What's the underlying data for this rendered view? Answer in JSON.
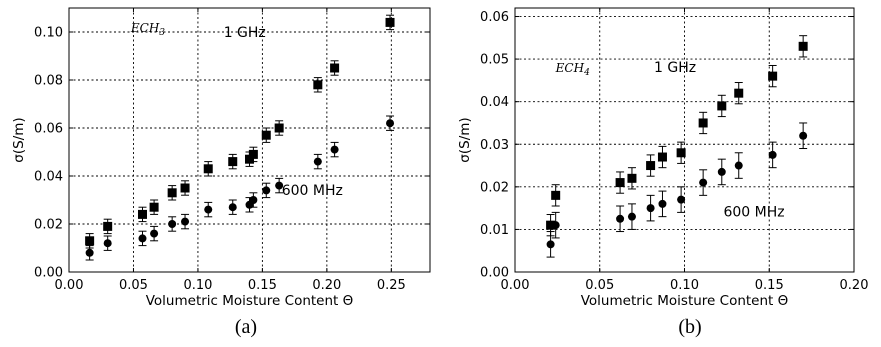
{
  "chart_data": [
    {
      "panel_label": "(a)",
      "type": "scatter",
      "xlabel": "Volumetric Moisture Content Θ",
      "ylabel": "σ(S/m)",
      "xlim": [
        0.0,
        0.28
      ],
      "ylim": [
        0.0,
        0.11
      ],
      "xticks": [
        0.0,
        0.05,
        0.1,
        0.15,
        0.2,
        0.25
      ],
      "xtick_labels": [
        "0.00",
        "0.05",
        "0.10",
        "0.15",
        "0.20",
        "0.25"
      ],
      "yticks": [
        0.0,
        0.02,
        0.04,
        0.06,
        0.08,
        0.1
      ],
      "ytick_labels": [
        "0.00",
        "0.02",
        "0.04",
        "0.06",
        "0.08",
        "0.10"
      ],
      "grid": true,
      "annotations": [
        {
          "text": "ECH",
          "sub": "3",
          "style": "italic",
          "x": 0.048,
          "y": 0.1
        },
        {
          "text": "1 GHz",
          "x": 0.12,
          "y": 0.098
        },
        {
          "text": "600 MHz",
          "x": 0.165,
          "y": 0.032
        }
      ],
      "series": [
        {
          "marker": "square",
          "points": [
            {
              "x": 0.016,
              "y": 0.013,
              "err": 0.003
            },
            {
              "x": 0.03,
              "y": 0.019,
              "err": 0.003
            },
            {
              "x": 0.057,
              "y": 0.024,
              "err": 0.003
            },
            {
              "x": 0.066,
              "y": 0.027,
              "err": 0.003
            },
            {
              "x": 0.08,
              "y": 0.033,
              "err": 0.003
            },
            {
              "x": 0.09,
              "y": 0.035,
              "err": 0.003
            },
            {
              "x": 0.108,
              "y": 0.043,
              "err": 0.003
            },
            {
              "x": 0.127,
              "y": 0.046,
              "err": 0.003
            },
            {
              "x": 0.14,
              "y": 0.047,
              "err": 0.003
            },
            {
              "x": 0.143,
              "y": 0.049,
              "err": 0.003
            },
            {
              "x": 0.153,
              "y": 0.057,
              "err": 0.003
            },
            {
              "x": 0.163,
              "y": 0.06,
              "err": 0.003
            },
            {
              "x": 0.193,
              "y": 0.078,
              "err": 0.003
            },
            {
              "x": 0.206,
              "y": 0.085,
              "err": 0.003
            },
            {
              "x": 0.249,
              "y": 0.104,
              "err": 0.003
            }
          ]
        },
        {
          "marker": "circle",
          "points": [
            {
              "x": 0.016,
              "y": 0.008,
              "err": 0.003
            },
            {
              "x": 0.03,
              "y": 0.012,
              "err": 0.003
            },
            {
              "x": 0.057,
              "y": 0.014,
              "err": 0.003
            },
            {
              "x": 0.066,
              "y": 0.016,
              "err": 0.003
            },
            {
              "x": 0.08,
              "y": 0.02,
              "err": 0.003
            },
            {
              "x": 0.09,
              "y": 0.021,
              "err": 0.003
            },
            {
              "x": 0.108,
              "y": 0.026,
              "err": 0.003
            },
            {
              "x": 0.127,
              "y": 0.027,
              "err": 0.003
            },
            {
              "x": 0.14,
              "y": 0.028,
              "err": 0.003
            },
            {
              "x": 0.143,
              "y": 0.03,
              "err": 0.003
            },
            {
              "x": 0.153,
              "y": 0.034,
              "err": 0.003
            },
            {
              "x": 0.163,
              "y": 0.036,
              "err": 0.003
            },
            {
              "x": 0.193,
              "y": 0.046,
              "err": 0.003
            },
            {
              "x": 0.206,
              "y": 0.051,
              "err": 0.003
            },
            {
              "x": 0.249,
              "y": 0.062,
              "err": 0.003
            }
          ]
        }
      ]
    },
    {
      "panel_label": "(b)",
      "type": "scatter",
      "xlabel": "Volumetric Moisture Content Θ",
      "ylabel": "σ(S/m)",
      "xlim": [
        0.0,
        0.2
      ],
      "ylim": [
        0.0,
        0.062
      ],
      "xticks": [
        0.0,
        0.05,
        0.1,
        0.15,
        0.2
      ],
      "xtick_labels": [
        "0.00",
        "0.05",
        "0.10",
        "0.15",
        "0.20"
      ],
      "yticks": [
        0.0,
        0.01,
        0.02,
        0.03,
        0.04,
        0.05,
        0.06
      ],
      "ytick_labels": [
        "0.00",
        "0.01",
        "0.02",
        "0.03",
        "0.04",
        "0.05",
        "0.06"
      ],
      "grid": true,
      "annotations": [
        {
          "text": "ECH",
          "sub": "4",
          "style": "italic",
          "x": 0.024,
          "y": 0.047
        },
        {
          "text": "1 GHz",
          "x": 0.082,
          "y": 0.047
        },
        {
          "text": "600 MHz",
          "x": 0.123,
          "y": 0.013
        }
      ],
      "series": [
        {
          "marker": "square",
          "points": [
            {
              "x": 0.021,
              "y": 0.011,
              "err": 0.0025
            },
            {
              "x": 0.024,
              "y": 0.018,
              "err": 0.0025
            },
            {
              "x": 0.062,
              "y": 0.021,
              "err": 0.0025
            },
            {
              "x": 0.069,
              "y": 0.022,
              "err": 0.0025
            },
            {
              "x": 0.08,
              "y": 0.025,
              "err": 0.0025
            },
            {
              "x": 0.087,
              "y": 0.027,
              "err": 0.0025
            },
            {
              "x": 0.098,
              "y": 0.028,
              "err": 0.0025
            },
            {
              "x": 0.111,
              "y": 0.035,
              "err": 0.0025
            },
            {
              "x": 0.122,
              "y": 0.039,
              "err": 0.0025
            },
            {
              "x": 0.132,
              "y": 0.042,
              "err": 0.0025
            },
            {
              "x": 0.152,
              "y": 0.046,
              "err": 0.0025
            },
            {
              "x": 0.17,
              "y": 0.053,
              "err": 0.0025
            }
          ]
        },
        {
          "marker": "circle",
          "points": [
            {
              "x": 0.021,
              "y": 0.0065,
              "err": 0.003
            },
            {
              "x": 0.024,
              "y": 0.011,
              "err": 0.003
            },
            {
              "x": 0.062,
              "y": 0.0125,
              "err": 0.003
            },
            {
              "x": 0.069,
              "y": 0.013,
              "err": 0.003
            },
            {
              "x": 0.08,
              "y": 0.015,
              "err": 0.003
            },
            {
              "x": 0.087,
              "y": 0.016,
              "err": 0.003
            },
            {
              "x": 0.098,
              "y": 0.017,
              "err": 0.003
            },
            {
              "x": 0.111,
              "y": 0.021,
              "err": 0.003
            },
            {
              "x": 0.122,
              "y": 0.0235,
              "err": 0.003
            },
            {
              "x": 0.132,
              "y": 0.025,
              "err": 0.003
            },
            {
              "x": 0.152,
              "y": 0.0275,
              "err": 0.003
            },
            {
              "x": 0.17,
              "y": 0.032,
              "err": 0.003
            }
          ]
        }
      ]
    }
  ]
}
